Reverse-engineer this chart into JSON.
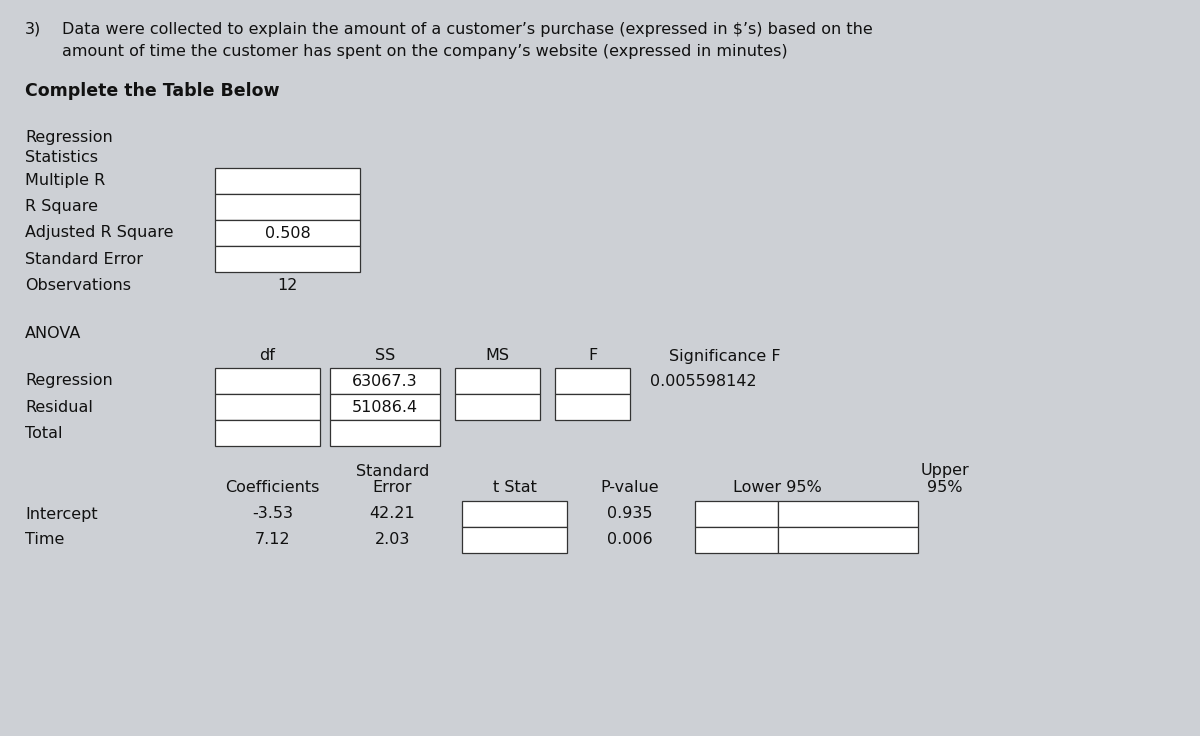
{
  "bg_color": "#cdd0d5",
  "title_num": "3)",
  "title_line1": "Data were collected to explain the amount of a customer’s purchase (expressed in $’s) based on the",
  "title_line2": "amount of time the customer has spent on the company’s website (expressed in minutes)",
  "subtitle": "Complete the Table Below",
  "reg_stats_rows": [
    "Regression\nStatistics",
    "Multiple R",
    "R Square",
    "Adjusted R Square",
    "Standard Error",
    "Observations"
  ],
  "reg_stats_values": [
    "",
    "",
    "",
    "0.508",
    "",
    "12"
  ],
  "reg_stats_has_cell": [
    false,
    true,
    true,
    true,
    true,
    false
  ],
  "anova_label": "ANOVA",
  "anova_headers": [
    "df",
    "SS",
    "MS",
    "F",
    "Significance F"
  ],
  "anova_rows": [
    "Regression",
    "Residual",
    "Total"
  ],
  "anova_ss": [
    "63067.3",
    "51086.4",
    ""
  ],
  "anova_sig_f": "0.005598142",
  "coef_headers_line1": [
    "",
    "Standard",
    "",
    "",
    "",
    "Upper"
  ],
  "coef_headers_line2": [
    "Coefficients",
    "Error",
    "t Stat",
    "P-value",
    "Lower 95%",
    "95%"
  ],
  "coef_rows": [
    "Intercept",
    "Time"
  ],
  "coef_values": [
    "-3.53",
    "7.12"
  ],
  "coef_se": [
    "42.21",
    "2.03"
  ],
  "coef_pvalue": [
    "0.935",
    "0.006"
  ]
}
